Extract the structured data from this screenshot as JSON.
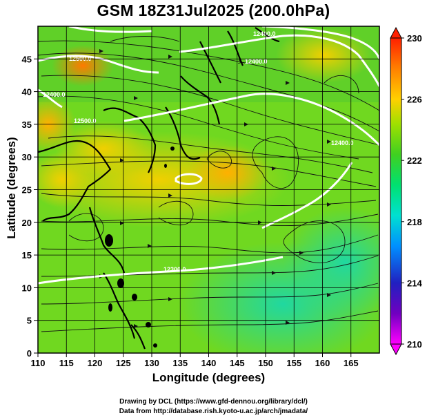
{
  "title": "GSM 18Z31Jul2025 (200.0hPa)",
  "axes": {
    "xlabel": "Longitude (degrees)",
    "ylabel": "Latitude  (degrees)",
    "xticks": [
      "110",
      "115",
      "120",
      "125",
      "130",
      "135",
      "140",
      "145",
      "150",
      "155",
      "160",
      "165"
    ],
    "yticks": [
      "0",
      "5",
      "10",
      "15",
      "20",
      "25",
      "30",
      "35",
      "40",
      "45"
    ]
  },
  "colorbar": {
    "labels": [
      "230",
      "226",
      "222",
      "218",
      "214",
      "210"
    ],
    "colors": [
      "#ff00ff",
      "#3030d0",
      "#00a0ff",
      "#00e0c8",
      "#00e070",
      "#40d020",
      "#a0e000",
      "#ffd000",
      "#ff8000",
      "#ff2000"
    ]
  },
  "contour_labels": [
    "12300.0",
    "12400.0",
    "12400.0",
    "12500.0",
    "12500.0",
    "12400.0",
    "12400.0"
  ],
  "credits": {
    "line1": "Drawing by DCL (https://www.gfd-dennou.org/library/dcl/)",
    "line2": "Data from http://database.rish.kyoto-u.ac.jp/arch/jmadata/"
  },
  "chart_data": {
    "type": "heatmap",
    "title": "GSM 18Z31Jul2025 (200.0hPa)",
    "xlabel": "Longitude (degrees)",
    "ylabel": "Latitude  (degrees)",
    "xlim": [
      110,
      170
    ],
    "ylim": [
      0,
      50
    ],
    "colorbar_range": [
      210,
      230
    ],
    "colorbar_ticks": [
      210,
      214,
      218,
      222,
      226,
      230
    ],
    "contour_levels": [
      12300,
      12400,
      12500
    ],
    "overlays": [
      "temperature shading",
      "geopotential height contours",
      "streamlines",
      "coastlines",
      "5-degree grid"
    ]
  }
}
